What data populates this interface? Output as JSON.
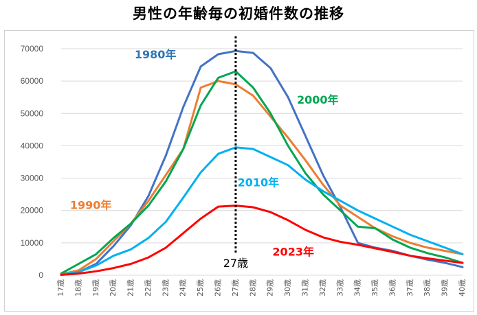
{
  "title": "男性の年齢毎の初婚件数の推移",
  "chart_data": {
    "type": "line",
    "categories": [
      "17歳",
      "18歳",
      "19歳",
      "20歳",
      "21歳",
      "22歳",
      "23歳",
      "24歳",
      "25歳",
      "26歳",
      "27歳",
      "28歳",
      "29歳",
      "30歳",
      "31歳",
      "32歳",
      "33歳",
      "34歳",
      "35歳",
      "36歳",
      "37歳",
      "38歳",
      "39歳",
      "40歳"
    ],
    "ylim": [
      0,
      70000
    ],
    "yticks": [
      0,
      10000,
      20000,
      30000,
      40000,
      50000,
      60000,
      70000
    ],
    "ytick_labels": [
      "0",
      "10000",
      "20000",
      "30000",
      "40000",
      "50000",
      "60000",
      "70000"
    ],
    "grid": true,
    "series": [
      {
        "name": "1980年",
        "color": "#4472C4",
        "label_color": "#2E75B6",
        "values": [
          300,
          1000,
          3500,
          9000,
          15500,
          24500,
          37000,
          52000,
          64500,
          68300,
          69300,
          68700,
          64000,
          55000,
          43000,
          31000,
          21000,
          10000,
          8500,
          7500,
          6000,
          4800,
          3800,
          2500
        ]
      },
      {
        "name": "1990年",
        "color": "#ED7D31",
        "label_color": "#ED7D31",
        "values": [
          300,
          1500,
          5000,
          10500,
          16000,
          23000,
          31000,
          39000,
          58000,
          60000,
          59000,
          55500,
          49000,
          42500,
          35500,
          28000,
          21500,
          18000,
          14500,
          12000,
          10000,
          8500,
          7500,
          6500
        ]
      },
      {
        "name": "2000年",
        "color": "#00A651",
        "label_color": "#00A651",
        "values": [
          500,
          3500,
          6500,
          11500,
          16000,
          21500,
          29000,
          39000,
          52500,
          61000,
          63000,
          58000,
          50000,
          40000,
          31500,
          25000,
          20000,
          15000,
          14500,
          11000,
          8500,
          6800,
          5500,
          3800
        ]
      },
      {
        "name": "2010年",
        "color": "#00B0F0",
        "label_color": "#00B0F0",
        "values": [
          200,
          1000,
          3000,
          6000,
          8000,
          11500,
          16500,
          24000,
          31800,
          37500,
          39500,
          39000,
          36500,
          34000,
          29500,
          26000,
          23000,
          20000,
          17500,
          15000,
          12500,
          10500,
          8500,
          6500
        ]
      },
      {
        "name": "2023年",
        "color": "#FF0000",
        "label_color": "#FF0000",
        "values": [
          100,
          500,
          1200,
          2200,
          3500,
          5500,
          8500,
          13000,
          17500,
          21200,
          21500,
          21000,
          19500,
          17000,
          14000,
          11700,
          10300,
          9400,
          8300,
          7200,
          6000,
          5200,
          4500,
          3800
        ]
      }
    ],
    "annotations": [
      {
        "text": "27歳",
        "category": "27歳",
        "style": "dotted-vertical-line",
        "color": "#000000"
      }
    ]
  }
}
